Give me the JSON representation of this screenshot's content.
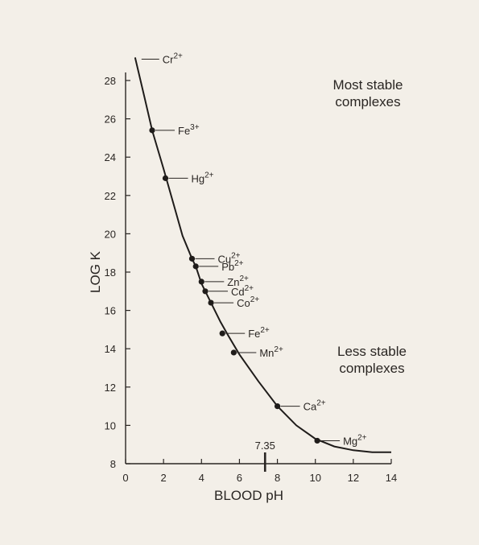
{
  "chart_data": {
    "type": "line",
    "xlabel": "BLOOD pH",
    "ylabel": "LOG K",
    "xlim": [
      0,
      14
    ],
    "ylim": [
      8,
      28
    ],
    "xticks": [
      "0",
      "2",
      "4",
      "6",
      "8",
      "10",
      "12",
      "14"
    ],
    "yticks": [
      "8",
      "10",
      "12",
      "14",
      "16",
      "18",
      "20",
      "22",
      "24",
      "26",
      "28"
    ],
    "marker": {
      "x": 7.35,
      "label": "7.35"
    },
    "annotations": {
      "most_stable": [
        "Most stable",
        "complexes"
      ],
      "less_stable": [
        "Less stable",
        "complexes"
      ]
    },
    "curve": [
      {
        "x": 0.5,
        "y": 29.2
      },
      {
        "x": 1.0,
        "y": 27.1
      },
      {
        "x": 1.4,
        "y": 25.4
      },
      {
        "x": 2.0,
        "y": 23.4
      },
      {
        "x": 2.6,
        "y": 21.3
      },
      {
        "x": 3.0,
        "y": 19.9
      },
      {
        "x": 3.5,
        "y": 18.7
      },
      {
        "x": 3.7,
        "y": 18.3
      },
      {
        "x": 4.0,
        "y": 17.4
      },
      {
        "x": 4.2,
        "y": 17.0
      },
      {
        "x": 4.5,
        "y": 16.4
      },
      {
        "x": 5.0,
        "y": 15.4
      },
      {
        "x": 5.4,
        "y": 14.7
      },
      {
        "x": 6.0,
        "y": 13.7
      },
      {
        "x": 7.0,
        "y": 12.3
      },
      {
        "x": 8.0,
        "y": 11.0
      },
      {
        "x": 9.0,
        "y": 10.0
      },
      {
        "x": 10.0,
        "y": 9.3
      },
      {
        "x": 11.0,
        "y": 8.9
      },
      {
        "x": 12.0,
        "y": 8.7
      },
      {
        "x": 13.0,
        "y": 8.6
      },
      {
        "x": 14.0,
        "y": 8.6
      }
    ],
    "points": [
      {
        "ion": "Fe",
        "charge": "3+",
        "x": 1.4,
        "y": 25.4
      },
      {
        "ion": "Hg",
        "charge": "2+",
        "x": 2.1,
        "y": 22.9
      },
      {
        "ion": "Cu",
        "charge": "2+",
        "x": 3.5,
        "y": 18.7
      },
      {
        "ion": "Pb",
        "charge": "2+",
        "x": 3.7,
        "y": 18.3
      },
      {
        "ion": "Zn",
        "charge": "2+",
        "x": 4.0,
        "y": 17.5
      },
      {
        "ion": "Cd",
        "charge": "2+",
        "x": 4.2,
        "y": 17.0
      },
      {
        "ion": "Co",
        "charge": "2+",
        "x": 4.5,
        "y": 16.4
      },
      {
        "ion": "Fe",
        "charge": "2+",
        "x": 5.1,
        "y": 14.8
      },
      {
        "ion": "Mn",
        "charge": "2+",
        "x": 5.7,
        "y": 13.8
      },
      {
        "ion": "Ca",
        "charge": "2+",
        "x": 8.0,
        "y": 11.0
      },
      {
        "ion": "Mg",
        "charge": "2+",
        "x": 10.1,
        "y": 9.2
      }
    ],
    "offscale_label": {
      "ion": "Cr",
      "charge": "2+",
      "x": 0.5,
      "y": 29.2
    }
  }
}
